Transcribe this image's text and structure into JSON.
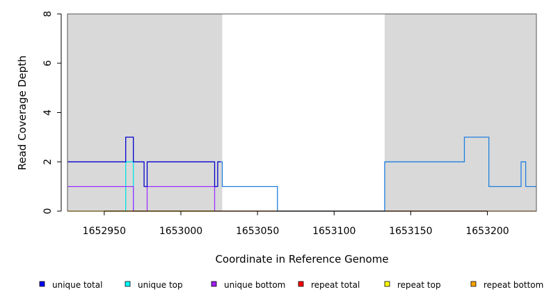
{
  "chart_data": {
    "type": "line",
    "title": "",
    "xlabel": "Coordinate in Reference Genome",
    "ylabel": "Read Coverage Depth",
    "xlim": [
      1652926,
      1653232
    ],
    "ylim": [
      0,
      8
    ],
    "x_ticks": [
      1652950,
      1653000,
      1653050,
      1653100,
      1653150,
      1653200
    ],
    "y_ticks": [
      0,
      2,
      4,
      6,
      8
    ],
    "grid": false,
    "legend_position": "bottom",
    "shaded_regions": [
      {
        "start": 1652926,
        "end": 1653027,
        "color": "#d9d9d9"
      },
      {
        "start": 1653133,
        "end": 1653232,
        "color": "#d9d9d9"
      }
    ],
    "series": [
      {
        "name": "unique top",
        "color": "#00e5e5",
        "x": [
          1652926,
          1652964,
          1652964,
          1652969,
          1652969,
          1652978,
          1652978,
          1653022,
          1653022,
          1653232
        ],
        "y": [
          0,
          0,
          2,
          2,
          0,
          0,
          0,
          0,
          0,
          0
        ]
      },
      {
        "name": "unique bottom",
        "color": "#9b30ff",
        "x": [
          1652926,
          1652969,
          1652969,
          1652978,
          1652978,
          1653022,
          1653022,
          1653232
        ],
        "y": [
          1,
          1,
          0,
          0,
          1,
          1,
          0,
          0
        ]
      },
      {
        "name": "repeat total",
        "color": "#ff0000",
        "x": [
          1652926,
          1653232
        ],
        "y": [
          0,
          0
        ]
      },
      {
        "name": "repeat top",
        "color": "#ffff00",
        "x": [
          1652926,
          1653232
        ],
        "y": [
          0,
          0
        ]
      },
      {
        "name": "repeat bottom",
        "color": "#ffa500",
        "x": [
          1652926,
          1653022
        ],
        "y": [
          0,
          0
        ]
      },
      {
        "name": "unique total",
        "color": "#0000cd",
        "x": [
          1652926,
          1652964,
          1652964,
          1652969,
          1652969,
          1652976,
          1652976,
          1652978,
          1652978,
          1653022,
          1653022,
          1653024,
          1653024,
          1653026
        ],
        "y": [
          2,
          2,
          3,
          3,
          2,
          2,
          1,
          1,
          2,
          2,
          1,
          1,
          2,
          2
        ]
      },
      {
        "name": "",
        "color": "#1e7fe0",
        "x": [
          1653026,
          1653027,
          1653027,
          1653063,
          1653063,
          1653133,
          1653133,
          1653185,
          1653185,
          1653201,
          1653201,
          1653222,
          1653222,
          1653225,
          1653225,
          1653232
        ],
        "y": [
          2,
          2,
          1,
          1,
          0,
          0,
          2,
          2,
          3,
          3,
          1,
          1,
          2,
          2,
          1,
          1
        ]
      }
    ],
    "legend": [
      {
        "label": "unique total",
        "color": "#0000ff"
      },
      {
        "label": "unique top",
        "color": "#00ffff"
      },
      {
        "label": "unique bottom",
        "color": "#a020f0"
      },
      {
        "label": "repeat total",
        "color": "#ff0000"
      },
      {
        "label": "repeat top",
        "color": "#ffff00"
      },
      {
        "label": "repeat bottom",
        "color": "#ffa500"
      }
    ]
  }
}
